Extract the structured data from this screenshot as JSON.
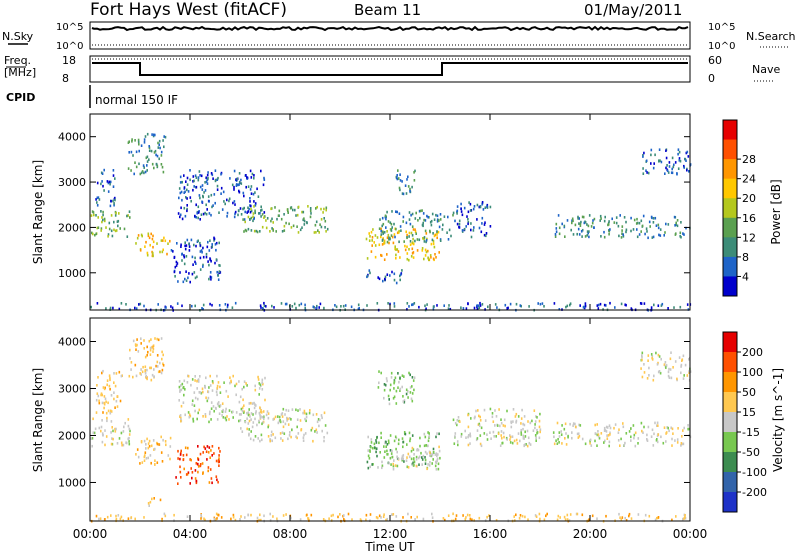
{
  "header": {
    "title": "Fort Hays West (fitACF)",
    "beam": "Beam 11",
    "date": "01/May/2011"
  },
  "summary_panel": {
    "nsky_label": "N.Sky",
    "nsearch_label": "N.Search",
    "noise_tick_top": "10^5",
    "noise_tick_bottom": "10^0",
    "freq_label_line1": "Freq.",
    "freq_label_line2": "[MHz]",
    "freq_tick_top": "18",
    "freq_tick_bottom": "8",
    "nave_label": "Nave",
    "nave_tick_top": "60",
    "nave_tick_bottom": "0",
    "cpid_label": "CPID",
    "cpid_value": "normal 150 IF"
  },
  "chart_data": [
    {
      "type": "heatmap",
      "panel": "power",
      "ylabel": "Slant Range [km]",
      "yticks": [
        "1000",
        "2000",
        "3000",
        "4000"
      ],
      "ylim": [
        180,
        4500
      ],
      "xlim_hours": [
        0,
        24
      ],
      "colorbar_label": "Power [dB]",
      "colorbar_ticks": [
        "4",
        "8",
        "12",
        "16",
        "20",
        "24",
        "28"
      ],
      "colorbar_colors": [
        "#0000cc",
        "#1e64c8",
        "#3c8c78",
        "#5aa050",
        "#b4c81e",
        "#ffc800",
        "#ff9600",
        "#ff5000",
        "#e60000"
      ],
      "regions": [
        {
          "t": [
            0.0,
            1.6
          ],
          "r": [
            1800,
            2400
          ],
          "level": 3
        },
        {
          "t": [
            0.2,
            1.0
          ],
          "r": [
            2500,
            3300
          ],
          "level": 1
        },
        {
          "t": [
            1.5,
            3.0
          ],
          "r": [
            3200,
            4100
          ],
          "level": 2
        },
        {
          "t": [
            1.8,
            3.2
          ],
          "r": [
            1400,
            1900
          ],
          "level": 5
        },
        {
          "t": [
            3.2,
            5.2
          ],
          "r": [
            800,
            1800
          ],
          "level": 1
        },
        {
          "t": [
            3.5,
            7.0
          ],
          "r": [
            2200,
            3300
          ],
          "level": 1
        },
        {
          "t": [
            6.0,
            9.5
          ],
          "r": [
            1900,
            2500
          ],
          "level": 3
        },
        {
          "t": [
            11.0,
            14.0
          ],
          "r": [
            1300,
            2000
          ],
          "level": 5
        },
        {
          "t": [
            11.5,
            14.5
          ],
          "r": [
            1700,
            2400
          ],
          "level": 2
        },
        {
          "t": [
            12.2,
            13.0
          ],
          "r": [
            2700,
            3300
          ],
          "level": 2
        },
        {
          "t": [
            11.0,
            12.5
          ],
          "r": [
            800,
            1100
          ],
          "level": 1
        },
        {
          "t": [
            14.5,
            16.0
          ],
          "r": [
            1800,
            2600
          ],
          "level": 1
        },
        {
          "t": [
            18.5,
            24.0
          ],
          "r": [
            1800,
            2300
          ],
          "level": 2
        },
        {
          "t": [
            22.0,
            24.0
          ],
          "r": [
            3200,
            3800
          ],
          "level": 1
        },
        {
          "t": [
            0.0,
            24.0
          ],
          "r": [
            200,
            360
          ],
          "level": 1
        }
      ]
    },
    {
      "type": "heatmap",
      "panel": "velocity",
      "ylabel": "Slant Range [km]",
      "yticks": [
        "1000",
        "2000",
        "3000",
        "4000"
      ],
      "ylim": [
        180,
        4500
      ],
      "xlim_hours": [
        0,
        24
      ],
      "xticks": [
        "00:00",
        "04:00",
        "08:00",
        "12:00",
        "16:00",
        "20:00",
        "00:00"
      ],
      "xlabel": "Time UT",
      "colorbar_label": "Velocity [m s^-1]",
      "colorbar_ticks": [
        "200",
        "100",
        "50",
        "15",
        "-15",
        "-50",
        "-100",
        "-200"
      ],
      "colorbar_colors": [
        "#1e32c8",
        "#3264aa",
        "#3c8c50",
        "#78c850",
        "#c8c8c8",
        "#ffc850",
        "#ff9600",
        "#ff5000",
        "#e60000"
      ],
      "regions": [
        {
          "t": [
            0.0,
            1.6
          ],
          "r": [
            1800,
            2400
          ],
          "v": "gray"
        },
        {
          "t": [
            0.2,
            1.3
          ],
          "r": [
            2500,
            3400
          ],
          "v": "orange"
        },
        {
          "t": [
            1.5,
            3.0
          ],
          "r": [
            3200,
            4100
          ],
          "v": "orange"
        },
        {
          "t": [
            1.8,
            3.2
          ],
          "r": [
            1400,
            2000
          ],
          "v": "orange"
        },
        {
          "t": [
            3.4,
            5.2
          ],
          "r": [
            1000,
            1800
          ],
          "v": "red"
        },
        {
          "t": [
            3.5,
            7.0
          ],
          "r": [
            2300,
            3300
          ],
          "v": "gray"
        },
        {
          "t": [
            6.0,
            9.5
          ],
          "r": [
            1900,
            2600
          ],
          "v": "gray"
        },
        {
          "t": [
            11.0,
            14.0
          ],
          "r": [
            1300,
            2100
          ],
          "v": "green"
        },
        {
          "t": [
            12.0,
            14.0
          ],
          "r": [
            1300,
            1800
          ],
          "v": "gray"
        },
        {
          "t": [
            11.5,
            13.0
          ],
          "r": [
            2700,
            3400
          ],
          "v": "green"
        },
        {
          "t": [
            14.5,
            18.0
          ],
          "r": [
            1800,
            2600
          ],
          "v": "gray"
        },
        {
          "t": [
            18.5,
            24.0
          ],
          "r": [
            1800,
            2300
          ],
          "v": "gray"
        },
        {
          "t": [
            22.0,
            24.0
          ],
          "r": [
            3200,
            3800
          ],
          "v": "gray"
        },
        {
          "t": [
            2.2,
            2.8
          ],
          "r": [
            500,
            700
          ],
          "v": "orange"
        },
        {
          "t": [
            0.0,
            24.0
          ],
          "r": [
            200,
            360
          ],
          "v": "orange"
        }
      ]
    }
  ]
}
